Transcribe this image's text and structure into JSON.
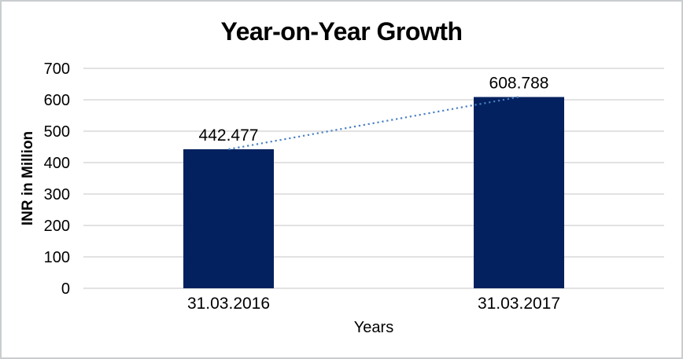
{
  "frame": {
    "background_color": "#ffffff",
    "border_color": "#c9cdd0"
  },
  "chart_data": {
    "type": "bar",
    "title": "Year-on-Year Growth",
    "categories": [
      "31.03.2016",
      "31.03.2017"
    ],
    "values": [
      442.477,
      608.788
    ],
    "data_labels": [
      "442.477",
      "608.788"
    ],
    "xlabel": "Years",
    "ylabel": "INR in Million",
    "ylim": [
      0,
      700
    ],
    "ytick_interval": 100,
    "ytick_labels": [
      "0",
      "100",
      "200",
      "300",
      "400",
      "500",
      "600",
      "700"
    ],
    "grid": true,
    "legend": "none",
    "bar_color": "#03215e",
    "gridline_color": "#d9d9d9",
    "text_color": "#000000",
    "trendline": {
      "style": "dotted",
      "color": "#4a80c4",
      "connects": [
        "top of 31.03.2016 bar",
        "top of 31.03.2017 bar"
      ]
    }
  }
}
